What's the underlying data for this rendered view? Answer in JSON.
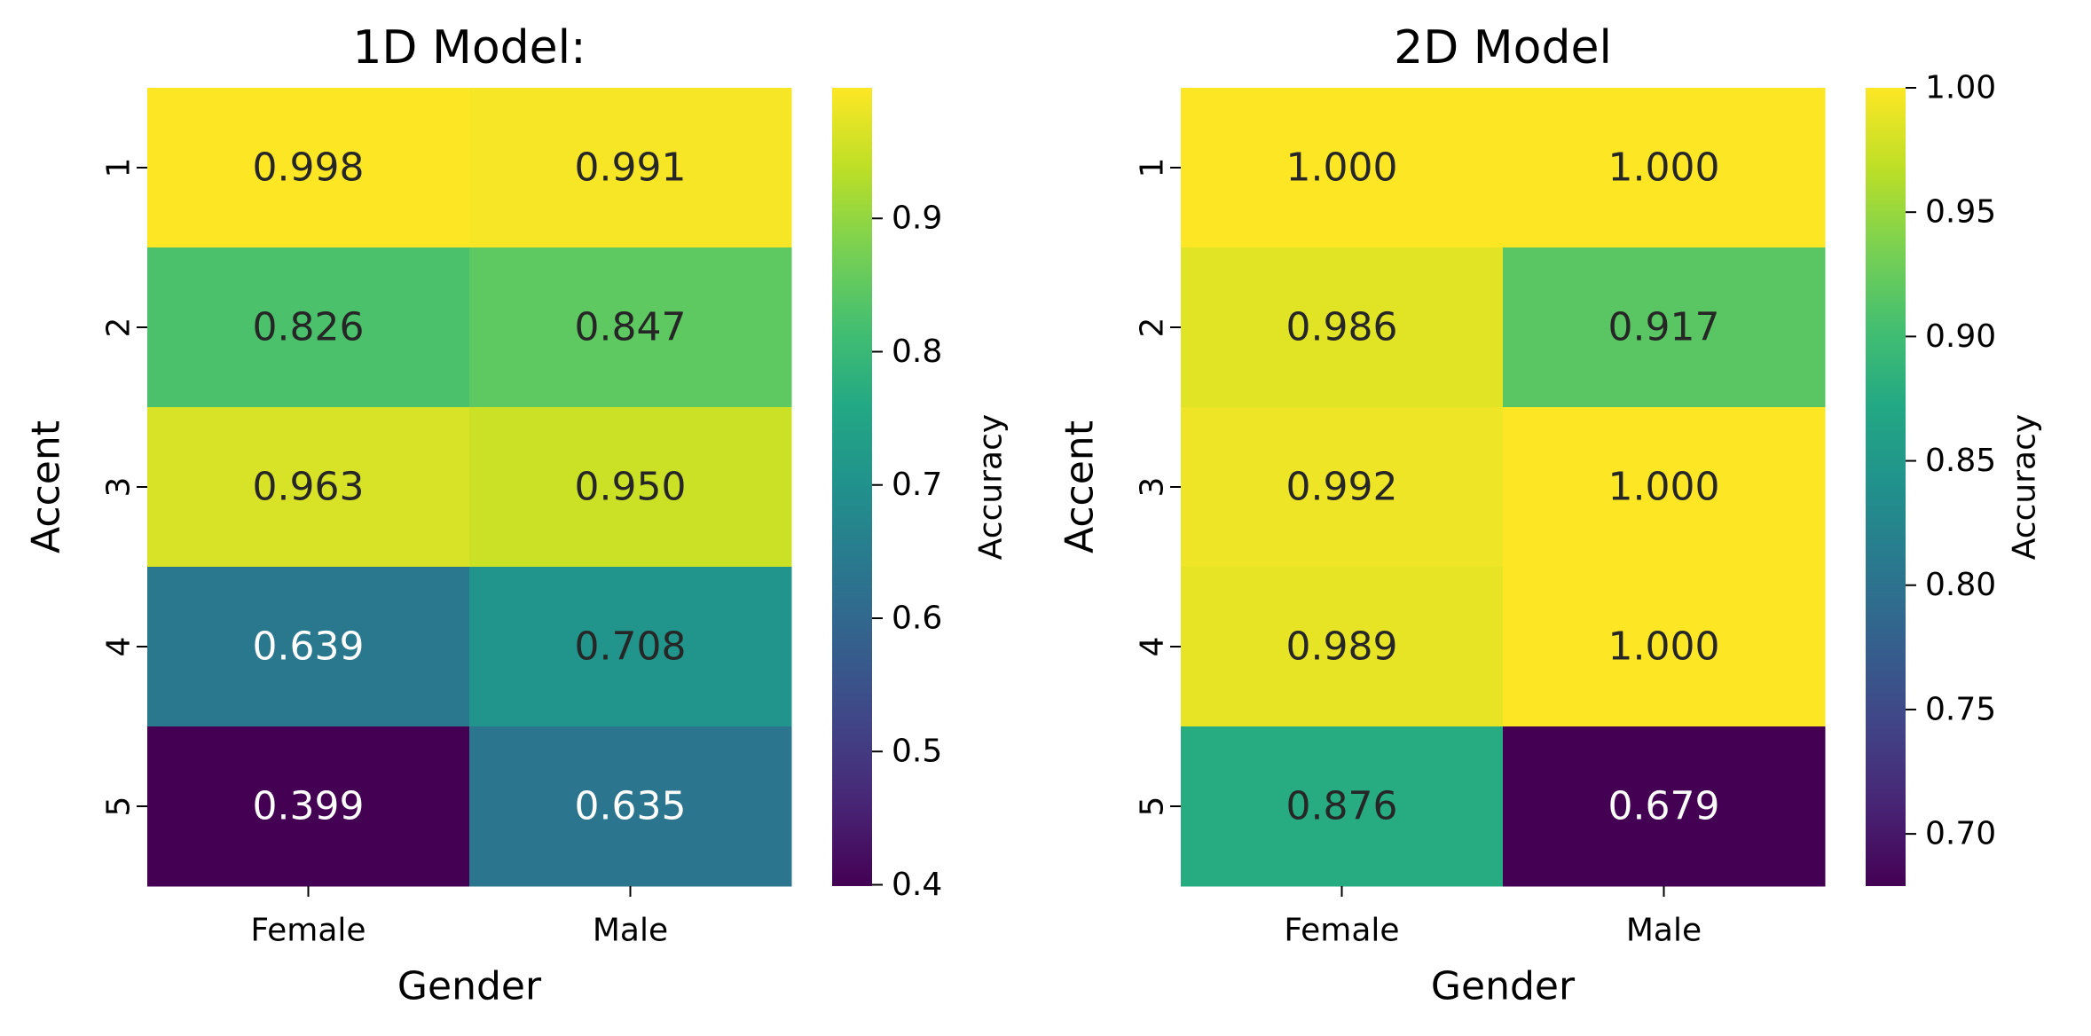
{
  "chart_data": [
    {
      "type": "heatmap",
      "title": "1D Model:",
      "xlabel": "Gender",
      "ylabel": "Accent",
      "x_categories": [
        "Female",
        "Male"
      ],
      "y_categories": [
        "1",
        "2",
        "3",
        "4",
        "5"
      ],
      "values": [
        [
          0.998,
          0.991
        ],
        [
          0.826,
          0.847
        ],
        [
          0.963,
          0.95
        ],
        [
          0.639,
          0.708
        ],
        [
          0.399,
          0.635
        ]
      ],
      "value_labels": [
        [
          "0.998",
          "0.991"
        ],
        [
          "0.826",
          "0.847"
        ],
        [
          "0.963",
          "0.950"
        ],
        [
          "0.639",
          "0.708"
        ],
        [
          "0.399",
          "0.635"
        ]
      ],
      "colormap": "viridis",
      "vmin": 0.399,
      "vmax": 0.998,
      "colorbar": {
        "label": "Accuracy",
        "ticks": [
          0.4,
          0.5,
          0.6,
          0.7,
          0.8,
          0.9
        ],
        "tick_labels": [
          "0.4",
          "0.5",
          "0.6",
          "0.7",
          "0.8",
          "0.9"
        ]
      }
    },
    {
      "type": "heatmap",
      "title": "2D Model",
      "xlabel": "Gender",
      "ylabel": "Accent",
      "x_categories": [
        "Female",
        "Male"
      ],
      "y_categories": [
        "1",
        "2",
        "3",
        "4",
        "5"
      ],
      "values": [
        [
          1.0,
          1.0
        ],
        [
          0.986,
          0.917
        ],
        [
          0.992,
          1.0
        ],
        [
          0.989,
          1.0
        ],
        [
          0.876,
          0.679
        ]
      ],
      "value_labels": [
        [
          "1.000",
          "1.000"
        ],
        [
          "0.986",
          "0.917"
        ],
        [
          "0.992",
          "1.000"
        ],
        [
          "0.989",
          "1.000"
        ],
        [
          "0.876",
          "0.679"
        ]
      ],
      "colormap": "viridis",
      "vmin": 0.679,
      "vmax": 1.0,
      "colorbar": {
        "label": "Accuracy",
        "ticks": [
          0.7,
          0.75,
          0.8,
          0.85,
          0.9,
          0.95,
          1.0
        ],
        "tick_labels": [
          "0.70",
          "0.75",
          "0.80",
          "0.85",
          "0.90",
          "0.95",
          "1.00"
        ]
      }
    }
  ]
}
